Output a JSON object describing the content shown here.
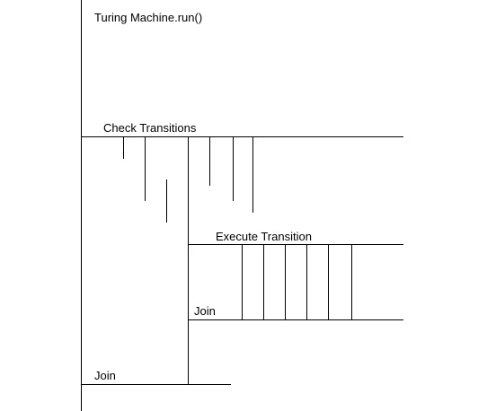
{
  "diagram": {
    "title": "Turing Machine.run()",
    "labels": {
      "check_transitions": "Check Transitions",
      "execute_transition": "Execute Transition",
      "inner_join": "Join",
      "outer_join": "Join"
    }
  }
}
